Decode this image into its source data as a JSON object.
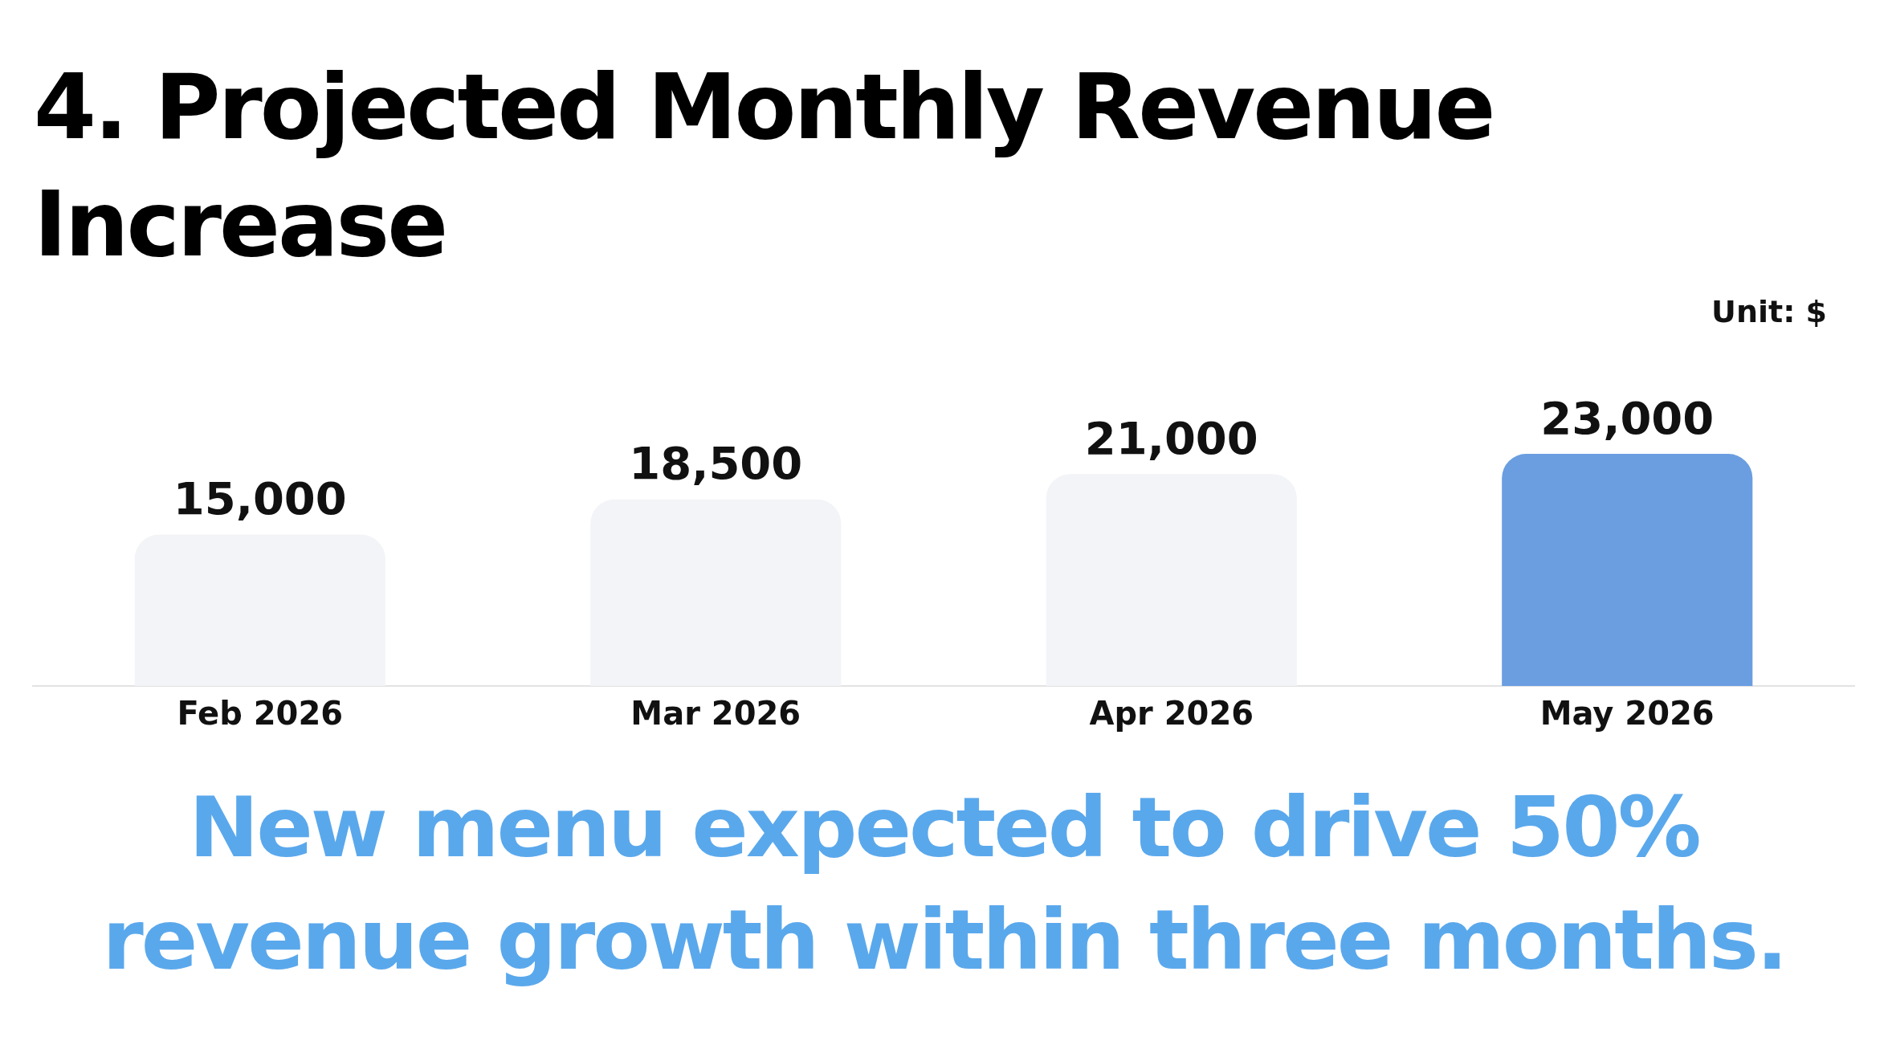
{
  "chart_data": {
    "type": "bar",
    "title": "4. Projected Monthly Revenue Increase",
    "categories": [
      "Feb 2026",
      "Mar 2026",
      "Apr 2026",
      "May 2026"
    ],
    "values": [
      15000,
      18500,
      21000,
      23000
    ],
    "colors": [
      "#f3f4f7",
      "#f3f4f7",
      "#f3f4f7",
      "#6a9ee0"
    ],
    "value_labels": [
      "15,000",
      "18,500",
      "21,000",
      "23,000"
    ],
    "grid": false,
    "legend": false,
    "annotations": [
      "Unit: $",
      "New menu expected to drive 50% revenue growth within three months."
    ]
  }
}
